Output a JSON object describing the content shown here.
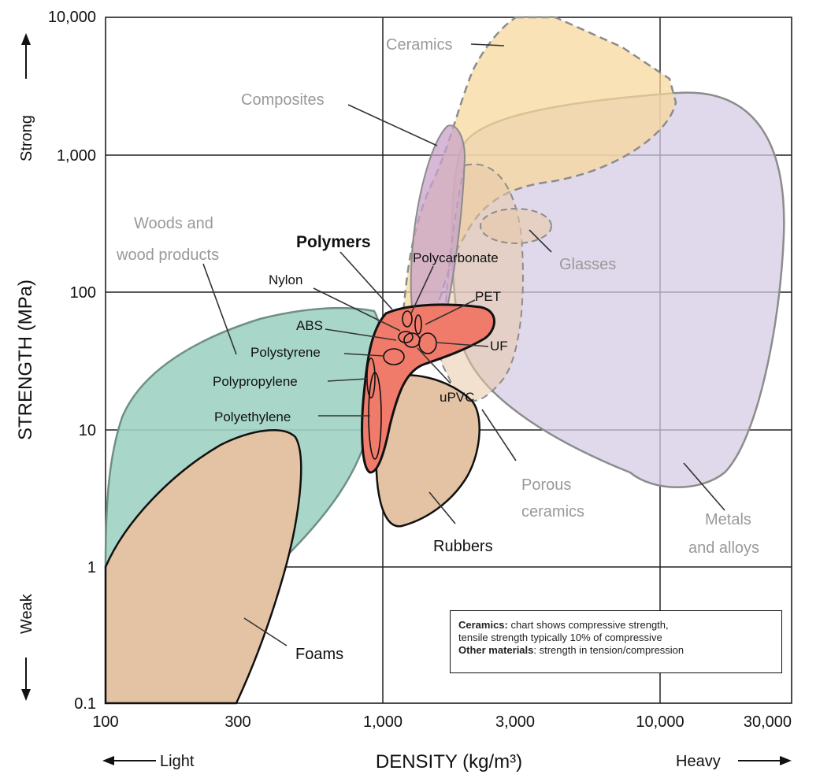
{
  "chart_data": {
    "type": "scatter",
    "title": "",
    "xlabel": "DENSITY (kg/m³)",
    "ylabel": "STRENGTH (MPa)",
    "x_scale": "log",
    "y_scale": "log",
    "xlim": [
      100,
      30000
    ],
    "ylim": [
      0.1,
      10000
    ],
    "x_ticks": [
      "100",
      "300",
      "1,000",
      "3,000",
      "10,000",
      "30,000"
    ],
    "y_ticks": [
      "0.1",
      "1",
      "10",
      "100",
      "1,000",
      "10,000"
    ],
    "x_direction": {
      "low": "Light",
      "high": "Heavy"
    },
    "y_direction": {
      "low": "Weak",
      "high": "Strong"
    },
    "grid": true,
    "series": [
      {
        "name": "Ceramics",
        "density_range": [
          1900,
          9000
        ],
        "strength_range": [
          30,
          10000
        ],
        "color": "#F6D79A"
      },
      {
        "name": "Composites",
        "density_range": [
          1300,
          2100
        ],
        "strength_range": [
          30,
          1600
        ],
        "color": "#C8A2C8"
      },
      {
        "name": "Glasses",
        "density_range": [
          2300,
          4100
        ],
        "strength_range": [
          200,
          400
        ],
        "color": "#E8C9A8"
      },
      {
        "name": "Woods and wood products",
        "density_range": [
          100,
          900
        ],
        "strength_range": [
          1,
          80
        ],
        "color": "#9FD3C3"
      },
      {
        "name": "Polymers",
        "density_range": [
          850,
          2600
        ],
        "strength_range": [
          5,
          90
        ],
        "color": "#F07B6B"
      },
      {
        "name": "Rubbers",
        "density_range": [
          900,
          2600
        ],
        "strength_range": [
          2,
          25
        ],
        "color": "#E3C3A3"
      },
      {
        "name": "Foams",
        "density_range": [
          100,
          420
        ],
        "strength_range": [
          0.1,
          10
        ],
        "color": "#E3C3A3"
      },
      {
        "name": "Porous ceramics",
        "density_range": [
          1200,
          2800
        ],
        "strength_range": [
          8,
          200
        ],
        "color": "#E8C9A8"
      },
      {
        "name": "Metals and alloys",
        "density_range": [
          1700,
          25000
        ],
        "strength_range": [
          4,
          3000
        ],
        "color": "#D6CCE6"
      }
    ],
    "polymers": [
      {
        "name": "Nylon",
        "density": 1140,
        "strength": 60
      },
      {
        "name": "Polycarbonate",
        "density": 1200,
        "strength": 65
      },
      {
        "name": "PET",
        "density": 1380,
        "strength": 60
      },
      {
        "name": "ABS",
        "density": 1050,
        "strength": 45
      },
      {
        "name": "Polystyrene",
        "density": 1050,
        "strength": 35
      },
      {
        "name": "UF",
        "density": 1500,
        "strength": 45
      },
      {
        "name": "uPVC",
        "density": 1400,
        "strength": 40
      },
      {
        "name": "Polypropylene",
        "density": 900,
        "strength": 30
      },
      {
        "name": "Polyethylene",
        "density": 950,
        "strength": 15
      }
    ],
    "labels": {
      "ceramics": "Ceramics",
      "composites": "Composites",
      "woods_line1": "Woods and",
      "woods_line2": "wood products",
      "glasses": "Glasses",
      "polymers": "Polymers",
      "polycarbonate": "Polycarbonate",
      "nylon": "Nylon",
      "pet": "PET",
      "abs": "ABS",
      "uf": "UF",
      "polystyrene": "Polystyrene",
      "polypropylene": "Polypropylene",
      "upvc": "uPVC",
      "polyethylene": "Polyethylene",
      "porous_line1": "Porous",
      "porous_line2": "ceramics",
      "metals_line1": "Metals",
      "metals_line2": "and alloys",
      "rubbers": "Rubbers",
      "foams": "Foams"
    },
    "note": {
      "ceramics_bold": "Ceramics:",
      "ceramics_text": " chart shows compressive strength,",
      "ceramics_text2": "tensile strength typically 10% of compressive",
      "other_bold": "Other materials",
      "other_text": ": strength in tension/compression"
    }
  }
}
